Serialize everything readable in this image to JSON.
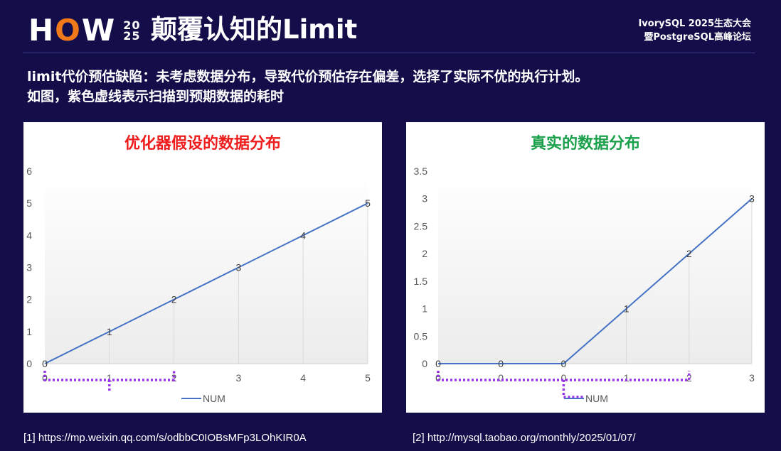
{
  "header": {
    "logo_prefix": "H",
    "logo_o": "O",
    "logo_suffix": "W",
    "logo_year_top": "20",
    "logo_year_bottom": "25",
    "title": "颠覆认知的Limit",
    "event_line1": "IvorySQL 2025生态大会",
    "event_line2": "暨PostgreSQL高峰论坛"
  },
  "description": {
    "line1": "limit代价预估缺陷：未考虑数据分布，导致代价预估存在偏差，选择了实际不优的执行计划。",
    "line2": "如图，紫色虚线表示扫描到预期数据的耗时"
  },
  "references": {
    "ref1": "[1] https://mp.weixin.qq.com/s/odbbC0IOBsMFp3LOhKIR0A",
    "ref2": "[2] http://mysql.taobao.org/monthly/2025/01/07/"
  },
  "colors": {
    "background": "#130d4a",
    "line": "#4472c4",
    "dotted_marker": "#9933ee",
    "title_red": "#ee1c1c",
    "title_green": "#1aa04b",
    "logo_accent": "#f07a1a"
  },
  "chart_data": [
    {
      "type": "line",
      "title": "优化器假设的数据分布",
      "title_color": "#ee1c1c",
      "x": [
        "0",
        "1",
        "2",
        "3",
        "4",
        "5"
      ],
      "series": [
        {
          "name": "NUM",
          "values": [
            0,
            1,
            2,
            3,
            4,
            5
          ]
        }
      ],
      "data_labels": [
        "0",
        "1",
        "2",
        "3",
        "4",
        "5"
      ],
      "ylim": [
        0,
        6
      ],
      "yticks": [
        "0",
        "1",
        "2",
        "3",
        "4",
        "5",
        "6"
      ],
      "xlabel": "",
      "ylabel": "",
      "grid": "vertical drop lines",
      "legend": "bottom",
      "scan_cost_marker": {
        "from_x": 0,
        "to_x": 2,
        "mid_x": 1
      }
    },
    {
      "type": "line",
      "title": "真实的数据分布",
      "title_color": "#1aa04b",
      "x": [
        "0",
        "0",
        "0",
        "1",
        "2",
        "3"
      ],
      "series": [
        {
          "name": "NUM",
          "values": [
            0,
            0,
            0,
            1,
            2,
            3
          ]
        }
      ],
      "data_labels": [
        "0",
        "0",
        "0",
        "1",
        "2",
        "3"
      ],
      "ylim": [
        0,
        3.5
      ],
      "yticks": [
        "0",
        "0.5",
        "1",
        "1.5",
        "2",
        "2.5",
        "3",
        "3.5"
      ],
      "xlabel": "",
      "ylabel": "",
      "grid": "vertical drop lines",
      "legend": "bottom",
      "scan_cost_marker": {
        "from_x": 0,
        "to_x": 4,
        "mid_x": 2
      }
    }
  ]
}
